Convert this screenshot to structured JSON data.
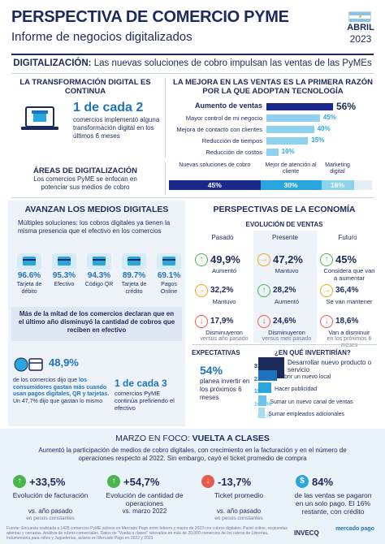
{
  "header": {
    "title": "PERSPECTIVA DE COMERCIO PYME",
    "subtitle": "Informe de negocios digitalizados",
    "month": "ABRIL",
    "year": "2023"
  },
  "digitalizacion": {
    "title_bold": "DIGITALIZACIÓN:",
    "title_rest": "Las nuevas soluciones de cobro impulsan las ventas de las PyMEs",
    "transformacion": {
      "heading": "LA TRANSFORMACIÓN DIGITAL ES CONTINUA",
      "big": "1 de cada 2",
      "text": "comercios implementó alguna transformación digital en los últimos 6 meses"
    },
    "mejora": {
      "heading": "LA MEJORA EN LAS VENTAS ES LA PRIMERA RAZÓN POR LA QUE ADOPTAN TECNOLOGÍA",
      "items": [
        {
          "label": "Aumento de ventas",
          "value": 56,
          "display": "56%"
        },
        {
          "label": "Mayor control de mi negocio",
          "value": 45,
          "display": "45%"
        },
        {
          "label": "Mejora de contacto con clientes",
          "value": 40,
          "display": "40%"
        },
        {
          "label": "Reducción de tiempos",
          "value": 35,
          "display": "35%"
        },
        {
          "label": "Reducción de costos",
          "value": 10,
          "display": "10%"
        }
      ]
    },
    "areas": {
      "heading": "ÁREAS DE DIGITALIZACIÓN",
      "text": "Los comercios PyME se enfocan en potenciar sus medios de cobro",
      "segments": [
        {
          "label": "Nuevas soluciones de cobro",
          "value": 45,
          "display": "45%",
          "color": "#1b2a8a"
        },
        {
          "label": "Mejor de atención al cliente",
          "value": 30,
          "display": "30%",
          "color": "#2aa6df"
        },
        {
          "label": "Marketing digital",
          "value": 16,
          "display": "16%",
          "color": "#8fd2f0"
        }
      ]
    }
  },
  "medios": {
    "heading": "AVANZAN LOS MEDIOS DIGITALES",
    "text": "Múltiples soluciones: los cobros digitales ya tienen la misma presencia que el efectivo en los comercios",
    "methods": [
      {
        "icon": "debit-card-icon",
        "value": "96.6%",
        "label": "Tarjeta de débito"
      },
      {
        "icon": "cash-icon",
        "value": "95.3%",
        "label": "Efectivo"
      },
      {
        "icon": "qr-code-icon",
        "value": "94.3%",
        "label": "Código QR"
      },
      {
        "icon": "credit-card-icon",
        "value": "89.7%",
        "label": "Tarjeta de crédito"
      },
      {
        "icon": "phone-icon",
        "value": "69.1%",
        "label": "Pagos Online"
      }
    ],
    "banner": "Más de la mitad de los comercios declaran que en el último año disminuyó la cantidad de cobros que reciben en efectivo",
    "stat1": {
      "value": "48,9%",
      "text_a": "de los comercios dijo que",
      "text_b": "los consumidores gastan más cuando usan pagos digitales, QR y tarjetas.",
      "text_c": "Un 47,7% dijo que gastan lo mismo"
    },
    "stat2": {
      "big": "1 de cada 3",
      "text": "comercios PyME continúa prefiriendo el efectivo"
    }
  },
  "economia": {
    "heading": "PERSPECTIVAS DE LA ECONOMÍA",
    "sub": "EVOLUCIÓN DE VENTAS",
    "columns": [
      {
        "name": "Pasado",
        "rows": [
          {
            "value": "49,9%",
            "label": "Aumentó",
            "note": ""
          },
          {
            "value": "32,2%",
            "label": "Mantuvo",
            "note": ""
          },
          {
            "value": "17,9%",
            "label": "Disminuyeron",
            "note": "versus año pasado"
          }
        ]
      },
      {
        "name": "Presente",
        "rows": [
          {
            "value": "47,2%",
            "label": "Mantuvo",
            "note": ""
          },
          {
            "value": "28,2%",
            "label": "Aumentó",
            "note": ""
          },
          {
            "value": "24,6%",
            "label": "Disminuyeron",
            "note": "versus mes pasado"
          }
        ]
      },
      {
        "name": "Futuro",
        "rows": [
          {
            "value": "45%",
            "label": "Considera que van a aumentar",
            "note": ""
          },
          {
            "value": "36,4%",
            "label": "Se van mantener",
            "note": ""
          },
          {
            "value": "18,6%",
            "label": "Van a disminuir",
            "note": "en los próximos 6 meses"
          }
        ]
      }
    ],
    "expectativas": {
      "heading": "EXPECTATIVAS",
      "value": "54%",
      "text": "planea invertir en los próximos 6 meses"
    },
    "invertir": {
      "heading": "¿EN QUÉ INVERTIRÍAN?",
      "items": [
        {
          "value": 31.7,
          "display": "31.7%",
          "label": "Desarrollar nuevo producto o servicio",
          "color": "#1b2a5a"
        },
        {
          "value": 23.2,
          "display": "23.2%",
          "label": "Abrir un nuevo local",
          "color": "#1e73be"
        },
        {
          "value": 15.9,
          "display": "15.9%",
          "label": "Hacer publicidad",
          "color": "#2aa6df"
        },
        {
          "value": 10.2,
          "display": "10.2%",
          "label": "Sumar un nuevo canal de ventas",
          "color": "#6cc4ea"
        },
        {
          "value": 8.2,
          "display": "8.2%",
          "label": "Sumar empleados adicionales",
          "color": "#a8dcf3"
        }
      ]
    }
  },
  "marzo": {
    "heading_a": "MARZO EN FOCO:",
    "heading_b": "VUELTA A CLASES",
    "text": "Aumentó la participación de medios de cobro digitales, con crecimiento en la facturación y en el número de operaciones respecto al 2022. Sin embargo, cayó el ticket promedio de compra",
    "kpis": [
      {
        "value": "+33,5%",
        "label": "Evolución de facturación",
        "sub": "vs. año pasado",
        "note": "en pesos constantes",
        "color": "#49b64d"
      },
      {
        "value": "+54,7%",
        "label": "Evolución de cantidad de operaciones",
        "sub": "vs. marzo 2022",
        "note": "",
        "color": "#49b64d"
      },
      {
        "value": "-13,7%",
        "label": "Ticket promedio",
        "sub": "vs. año pasado",
        "note": "en pesos constantes",
        "color": "#e85b4a"
      },
      {
        "value": "84%",
        "label": "de las ventas se pagaron en un solo pago. El 16% restante, con crédito",
        "sub": "",
        "note": "",
        "color": "#2aa6df"
      }
    ]
  },
  "footer": {
    "text": "Fuente: Encuesta realizada a 1425 comercios PyME activos en Mercado Pago entre febrero y marzo de 2023 con cobros digitales. Panel online, respuestas abiertas y cerradas. Análisis de rubros comerciales. Datos de \"Vuelta a clases\" relevados en más de 20.000 comercios de los rubros de Librerías, Indumentaria para niños y Jugueterías, activos en Mercado Pago en 2022 y 2023",
    "logo1": "INVECQ",
    "logo2": "mercado pago"
  }
}
